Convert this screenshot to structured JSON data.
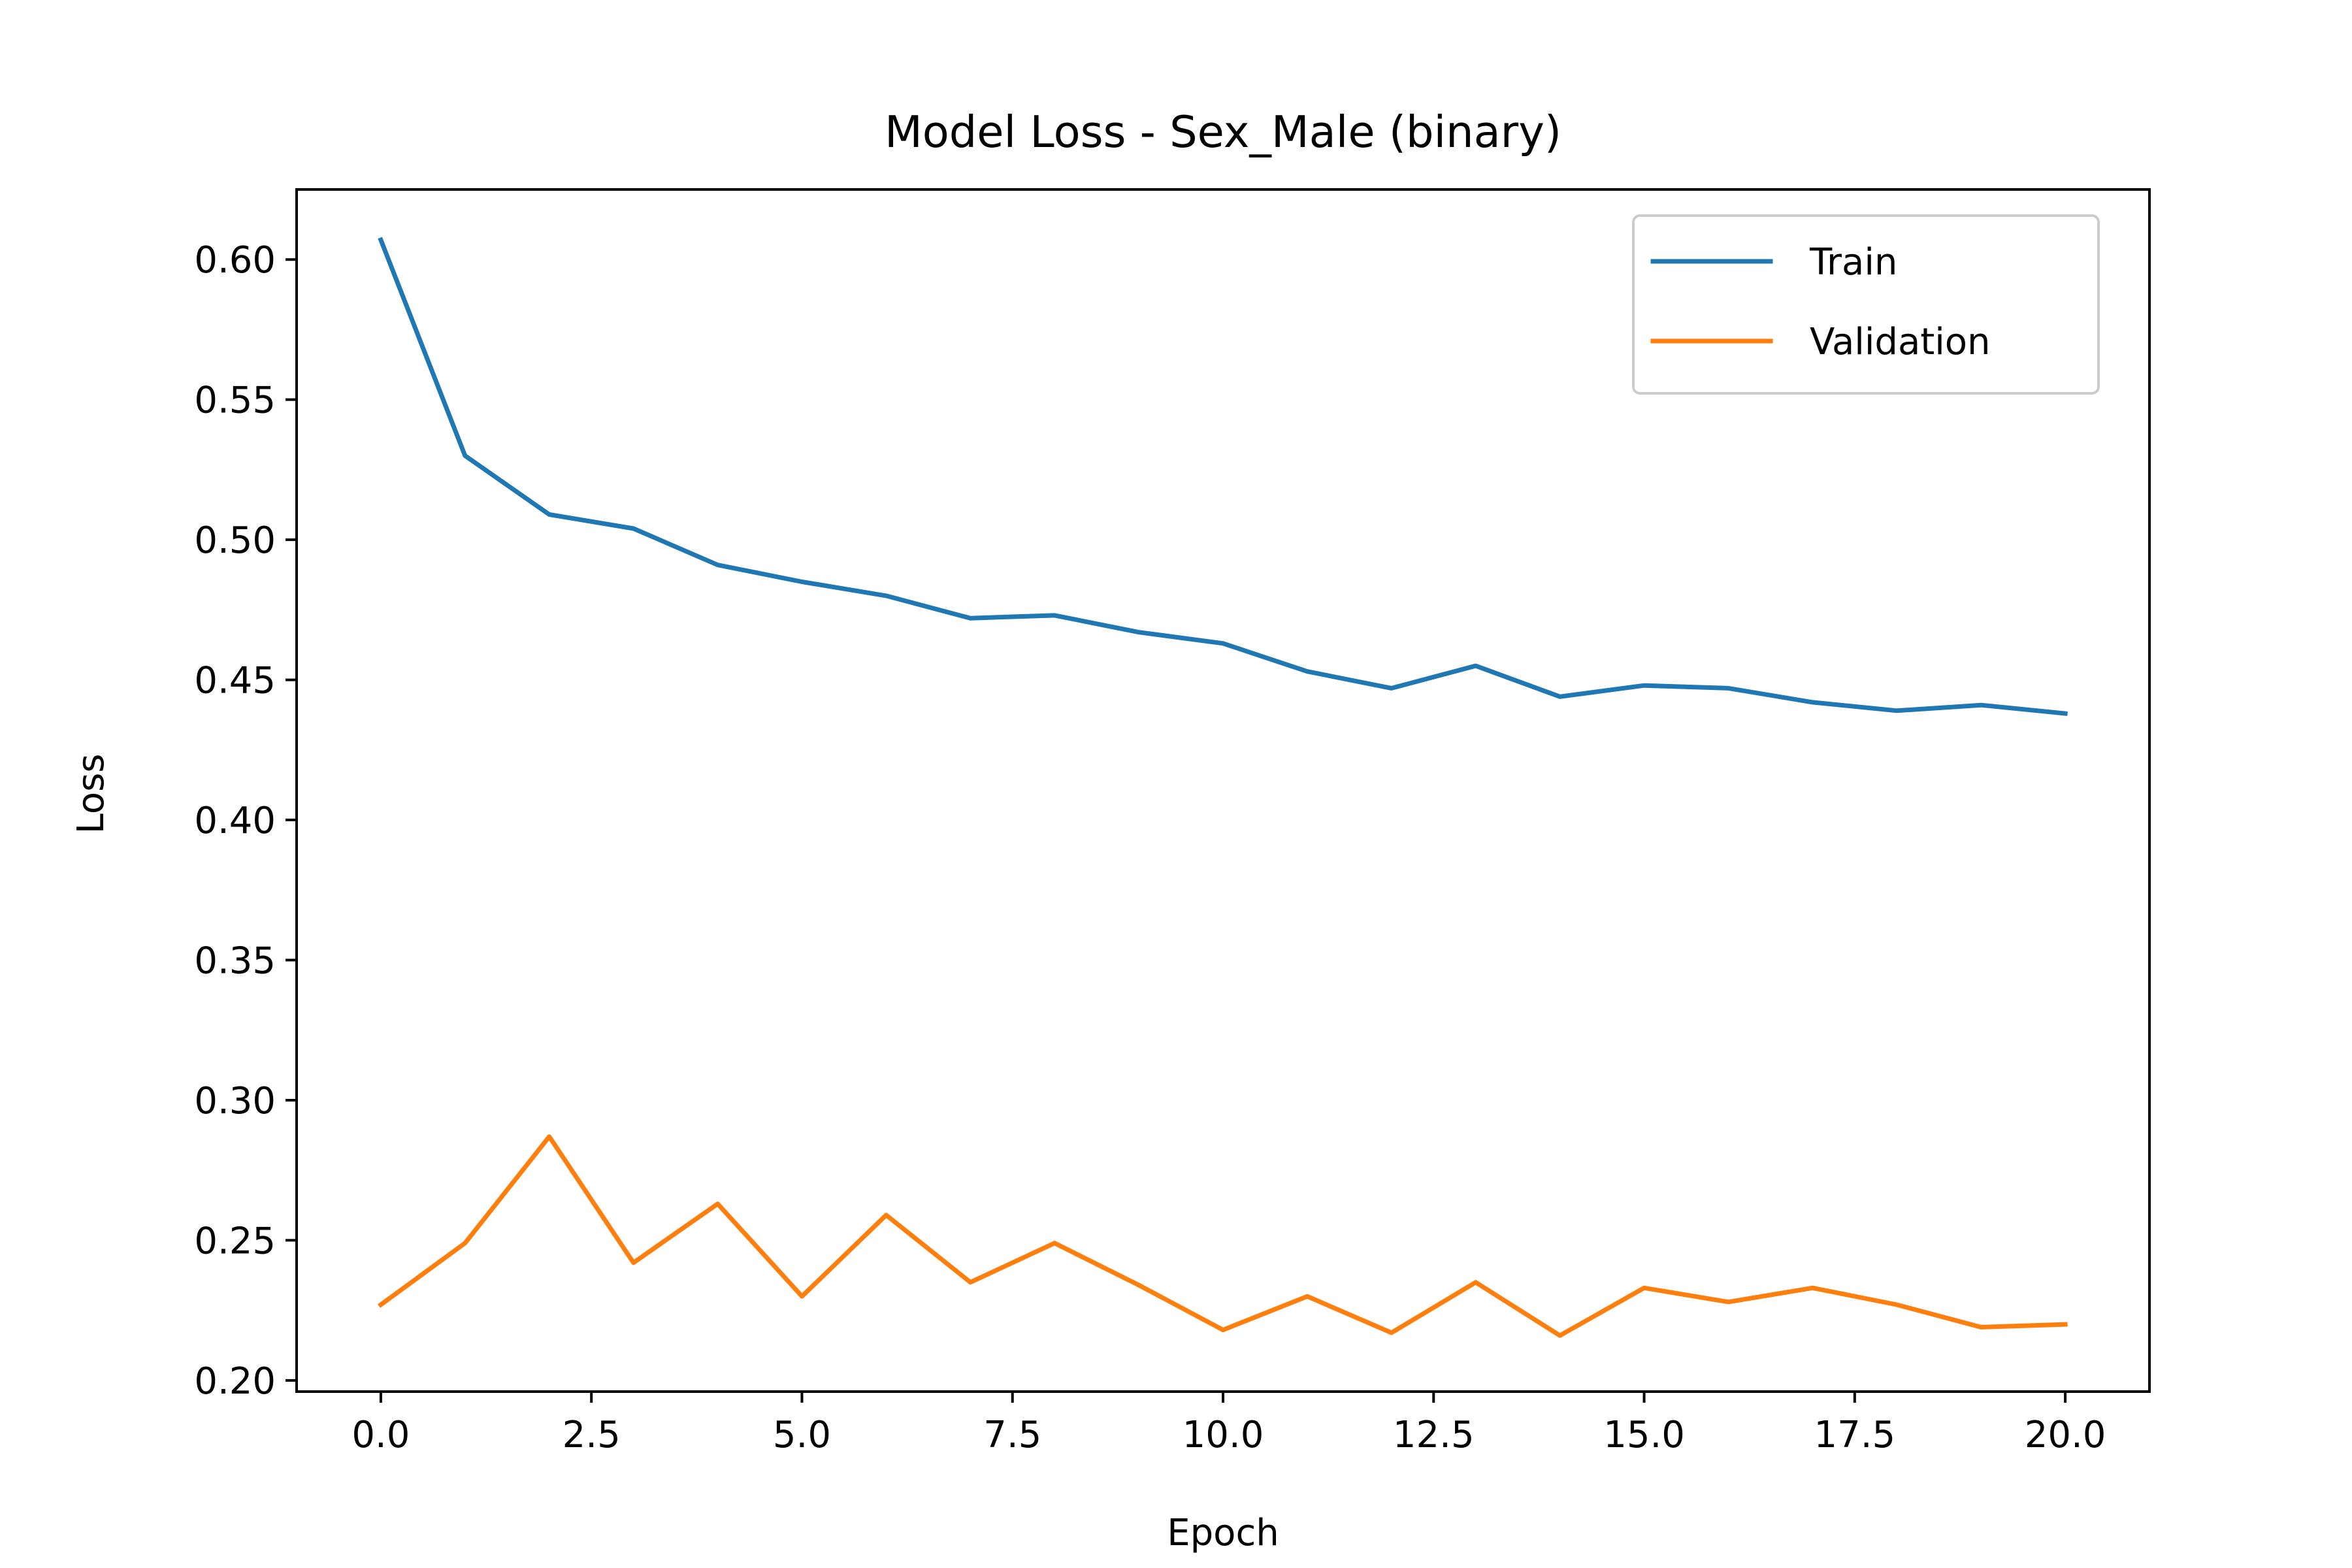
{
  "chart_data": {
    "type": "line",
    "title": "Model Loss - Sex_Male (binary)",
    "xlabel": "Epoch",
    "ylabel": "Loss",
    "xlim": [
      -1,
      21
    ],
    "ylim": [
      0.196,
      0.625
    ],
    "xticks": [
      0,
      2.5,
      5,
      7.5,
      10,
      12.5,
      15,
      17.5,
      20
    ],
    "xtick_labels": [
      "0.0",
      "2.5",
      "5.0",
      "7.5",
      "10.0",
      "12.5",
      "15.0",
      "17.5",
      "20.0"
    ],
    "yticks": [
      0.2,
      0.25,
      0.3,
      0.35,
      0.4,
      0.45,
      0.5,
      0.55,
      0.6
    ],
    "ytick_labels": [
      "0.20",
      "0.25",
      "0.30",
      "0.35",
      "0.40",
      "0.45",
      "0.50",
      "0.55",
      "0.60"
    ],
    "grid": false,
    "legend_position": "top-right",
    "x": [
      0,
      1,
      2,
      3,
      4,
      5,
      6,
      7,
      8,
      9,
      10,
      11,
      12,
      13,
      14,
      15,
      16,
      17,
      18,
      19,
      20
    ],
    "series": [
      {
        "name": "Train",
        "color": "#1f77b4",
        "values": [
          0.607,
          0.53,
          0.509,
          0.504,
          0.491,
          0.485,
          0.48,
          0.472,
          0.473,
          0.467,
          0.463,
          0.453,
          0.447,
          0.455,
          0.444,
          0.448,
          0.447,
          0.442,
          0.439,
          0.441,
          0.438
        ]
      },
      {
        "name": "Validation",
        "color": "#ff7f0e",
        "values": [
          0.227,
          0.249,
          0.287,
          0.242,
          0.263,
          0.23,
          0.259,
          0.235,
          0.249,
          0.234,
          0.218,
          0.23,
          0.217,
          0.235,
          0.216,
          0.233,
          0.228,
          0.233,
          0.227,
          0.219,
          0.22
        ]
      }
    ]
  }
}
